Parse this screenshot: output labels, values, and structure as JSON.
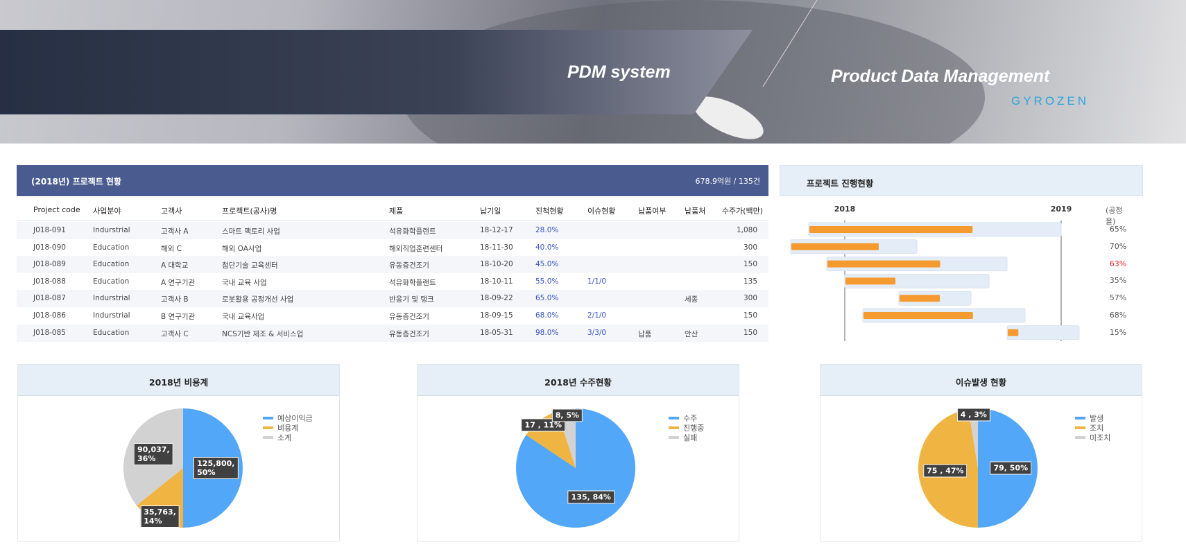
{
  "banner": {
    "system_title": "PDM system",
    "subtitle": "Product Data Management",
    "logo": "GYROZEN"
  },
  "table": {
    "title": "(2018년) 프로젝트 현황",
    "summary": "678.9억원 / 135건",
    "columns": [
      "Project code",
      "사업분야",
      "고객사",
      "프로젝트(공사)명",
      "제품",
      "납기일",
      "진척현황",
      "이슈현황",
      "납품여부",
      "납품처",
      "수주가(백만)"
    ],
    "rows": [
      [
        "J018-091",
        "Indurstrial",
        "고객사 A",
        "스마트 팩토리 사업",
        "석유화학플랜트",
        "18-12-17",
        "28.0%",
        "",
        "",
        "",
        "1,080"
      ],
      [
        "J018-090",
        "Education",
        "해외 C",
        "해외 OA사업",
        "해외직업훈련센터",
        "18-11-30",
        "40.0%",
        "",
        "",
        "",
        "300"
      ],
      [
        "J018-089",
        "Education",
        "A 대학교",
        "첨단기술 교육센터",
        "유동층건조기",
        "18-10-20",
        "45.0%",
        "",
        "",
        "",
        "150"
      ],
      [
        "J018-088",
        "Education",
        "A 연구기관",
        "국내 교육 사업",
        "석유화학플랜트",
        "18-10-11",
        "55.0%",
        "1/1/0",
        "",
        "",
        "135"
      ],
      [
        "J018-087",
        "Indurstrial",
        "고객사 B",
        "로봇활용 공정개선 사업",
        "반응기 및 탱크",
        "18-09-22",
        "65.0%",
        "",
        "",
        "세종",
        "300"
      ],
      [
        "J018-086",
        "Indurstrial",
        "B 연구기관",
        "국내 교육사업",
        "유동층건조기",
        "18-09-15",
        "68.0%",
        "2/1/0",
        "",
        "",
        "150"
      ],
      [
        "J018-085",
        "Education",
        "고객사 C",
        "NCS기반 제조 & 서비스업",
        "유동층건조기",
        "18-05-31",
        "98.0%",
        "3/3/0",
        "납품",
        "안산",
        "150"
      ]
    ]
  },
  "gantt": {
    "title": "프로젝트 진행현황",
    "years": [
      "2018",
      "2019"
    ],
    "rate_header": "(공정율)",
    "colors": {
      "bar": "#f59a2e",
      "track": "#e4edf7",
      "alert": "#e8202a"
    },
    "rows": [
      {
        "start": "2017-11",
        "end": "2019-01",
        "rate": 65,
        "label": "65%",
        "alert": false
      },
      {
        "start": "2017-10",
        "end": "2018-05",
        "rate": 70,
        "label": "70%",
        "alert": false
      },
      {
        "start": "2017-12",
        "end": "2018-10",
        "rate": 63,
        "label": "63%",
        "alert": true
      },
      {
        "start": "2018-01",
        "end": "2018-09",
        "rate": 35,
        "label": "35%",
        "alert": false
      },
      {
        "start": "2018-04",
        "end": "2018-08",
        "rate": 57,
        "label": "57%",
        "alert": false
      },
      {
        "start": "2018-02",
        "end": "2018-11",
        "rate": 68,
        "label": "68%",
        "alert": false
      },
      {
        "start": "2018-10",
        "end": "2019-02",
        "rate": 15,
        "label": "15%",
        "alert": false
      }
    ]
  },
  "chart_data": [
    {
      "type": "pie",
      "title": "2018년 비용계",
      "legend": "top-right",
      "series": [
        {
          "name": "예상이익금",
          "value": 125800,
          "label": "125,800,\n50%",
          "color": "#52a7f9"
        },
        {
          "name": "비용계",
          "value": 35763,
          "label": "35,763,\n14%",
          "color": "#efb441"
        },
        {
          "name": "소계",
          "value": 90037,
          "label": "90,037,\n36%",
          "color": "#d2d2d2"
        }
      ]
    },
    {
      "type": "pie",
      "title": "2018년 수주현황",
      "legend": "top-right",
      "series": [
        {
          "name": "수주",
          "value": 135,
          "label": "135, 84%",
          "color": "#52a7f9"
        },
        {
          "name": "진행중",
          "value": 17,
          "label": "17 , 11%",
          "color": "#efb441"
        },
        {
          "name": "실패",
          "value": 8,
          "label": "8, 5%",
          "color": "#d2d2d2"
        }
      ]
    },
    {
      "type": "pie",
      "title": "이슈발생 현황",
      "legend": "top-right",
      "series": [
        {
          "name": "발생",
          "value": 79,
          "label": "79, 50%",
          "color": "#52a7f9"
        },
        {
          "name": "조치",
          "value": 75,
          "label": "75 , 47%",
          "color": "#efb441"
        },
        {
          "name": "미조치",
          "value": 4,
          "label": "4 , 3%",
          "color": "#d2d2d2"
        }
      ]
    }
  ]
}
